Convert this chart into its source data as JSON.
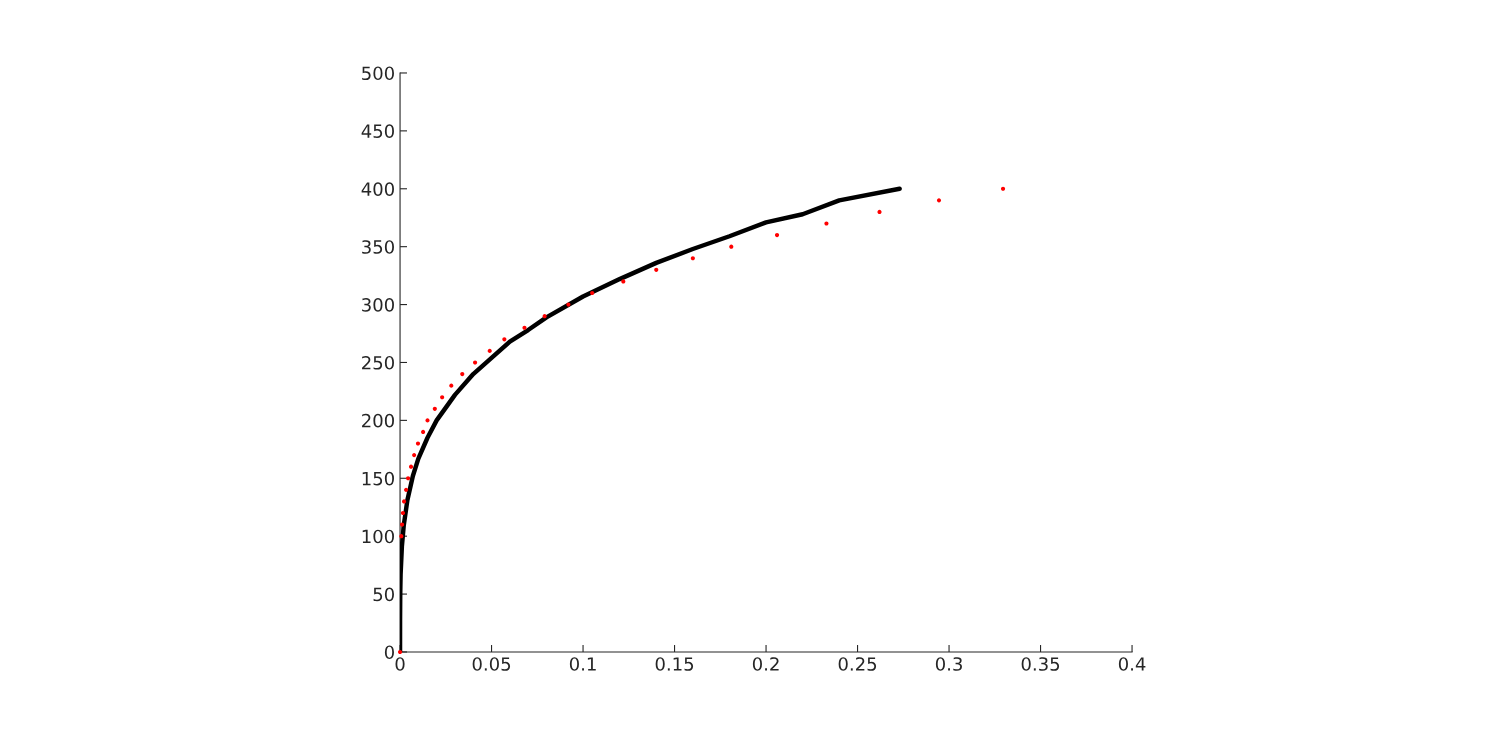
{
  "chart_data": {
    "type": "scatter",
    "xlim": [
      0,
      0.4
    ],
    "ylim": [
      0,
      500
    ],
    "xticks": [
      0,
      0.05,
      0.1,
      0.15,
      0.2,
      0.25,
      0.3,
      0.35,
      0.4
    ],
    "yticks": [
      0,
      50,
      100,
      150,
      200,
      250,
      300,
      350,
      400,
      450,
      500
    ],
    "grid": false,
    "series": [
      {
        "color": "#ff0000",
        "marker": "circle",
        "x": [
          0,
          null,
          null,
          null,
          null,
          null,
          null,
          null,
          null,
          null,
          0.0007,
          0.0011,
          0.0016,
          0.0022,
          0.0033,
          0.0044,
          0.006,
          0.0077,
          0.0098,
          0.0126,
          0.015,
          0.019,
          0.023,
          0.028,
          0.034,
          0.041,
          0.049,
          0.057,
          0.068,
          0.079,
          0.092,
          0.105,
          0.122,
          0.14,
          0.16,
          0.181,
          0.206,
          0.233,
          0.262,
          0.2945,
          0.3295
        ],
        "values": [
          0,
          null,
          null,
          null,
          null,
          null,
          null,
          null,
          null,
          null,
          100,
          110,
          120,
          130,
          140,
          150,
          160,
          170,
          180,
          190,
          200,
          210,
          220,
          230,
          240,
          250,
          260,
          270,
          280,
          290,
          300,
          310,
          320,
          330,
          340,
          350,
          360,
          370,
          380,
          390,
          400
        ]
      },
      {
        "type": "line",
        "color": "#000000",
        "line_style": "solid",
        "marker": "none",
        "x": [
          0,
          1e-06,
          1e-05,
          0.0001,
          0.0003,
          0.001,
          0.002,
          0.004,
          0.007,
          0.01,
          0.015,
          0.02,
          0.03,
          0.04,
          0.05,
          0.06,
          0.07,
          0.08,
          0.1,
          0.12,
          0.14,
          0.16,
          0.18,
          0.2,
          0.22,
          0.24,
          0.273
        ],
        "values": [
          0,
          15,
          27,
          50,
          67,
          91,
          109,
          131,
          152,
          167,
          185,
          200,
          222,
          240,
          254,
          268,
          278,
          289,
          307,
          322,
          336,
          348,
          359,
          371,
          378,
          390,
          400
        ]
      }
    ]
  }
}
